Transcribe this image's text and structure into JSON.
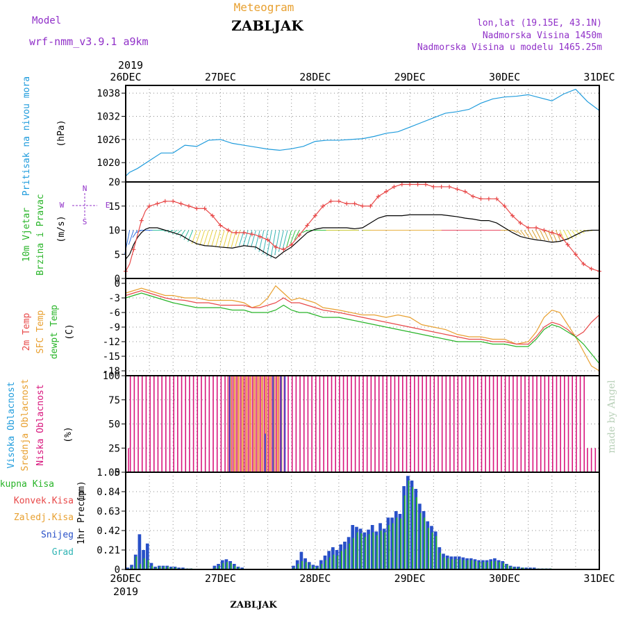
{
  "header": {
    "model_label": "Model",
    "model_name": "wrf-nmm_v3.9.1  a9km",
    "chart_kind": "Meteogram",
    "station": "ZABLJAK",
    "location_line1": "lon,lat (19.15E, 43.1N)",
    "location_line2": "Nadmorska Visina 1450m",
    "location_line3": "Nadmorska Visina u modelu 1465.25m",
    "footer_station": "ZABLJAK",
    "credit": "made by Angel"
  },
  "time_axis": {
    "year": "2019",
    "ticks": [
      "26DEC",
      "27DEC",
      "28DEC",
      "29DEC",
      "30DEC",
      "31DEC"
    ],
    "range_hours": [
      0,
      120
    ]
  },
  "colors": {
    "pressure": "#1e9bdc",
    "temp2m": "#e84848",
    "sfc_temp": "#e8a030",
    "dewpoint": "#28b428",
    "wind_speed": "#e84848",
    "gust": "#000000",
    "high_cloud": "#4848c8",
    "mid_cloud": "#e8a030",
    "low_cloud": "#d8147c",
    "precip_total": "#28b428",
    "precip_conv": "#e84848",
    "precip_freezing": "#e8a030",
    "precip_snow": "#2850c8",
    "precip_graupel": "#30b4b4",
    "wind_label": "#9030c8"
  },
  "chart_data": [
    {
      "type": "line",
      "panel": "pressure",
      "ylabel_main": "Pritisak na nivou mora",
      "ylabel_unit": "(hPa)",
      "ylim": [
        1015,
        1040
      ],
      "y_ticks": [
        "1020",
        "1026",
        "1032",
        "1038"
      ],
      "x": [
        0,
        1,
        3,
        6,
        9,
        12,
        15,
        18,
        21,
        24,
        27,
        30,
        33,
        36,
        39,
        42,
        45,
        48,
        51,
        54,
        57,
        60,
        63,
        66,
        69,
        72,
        75,
        78,
        81,
        84,
        87,
        90,
        93,
        96,
        99,
        102,
        105,
        108,
        111,
        114,
        117,
        120
      ],
      "series": [
        {
          "values": [
            1016.5,
            1017.5,
            1018.5,
            1020.5,
            1022.5,
            1022.5,
            1024.5,
            1024.2,
            1025.8,
            1026.0,
            1025.0,
            1024.5,
            1024.0,
            1023.5,
            1023.2,
            1023.6,
            1024.2,
            1025.5,
            1025.8,
            1025.8,
            1026.0,
            1026.2,
            1026.8,
            1027.6,
            1028.0,
            1029.2,
            1030.4,
            1031.6,
            1032.8,
            1033.2,
            1033.8,
            1035.4,
            1036.5,
            1037.0,
            1037.2,
            1037.6,
            1036.8,
            1036.0,
            1037.8,
            1039.0,
            1035.8,
            1033.5
          ]
        }
      ]
    },
    {
      "type": "line",
      "panel": "wind",
      "ylabel_main": "10m Vjetar",
      "ylabel_sub": "Brzina i Pravac",
      "ylabel_unit": "(m/s)",
      "compass": [
        "N",
        "W",
        "E",
        "S"
      ],
      "ylim": [
        0,
        20
      ],
      "y_ticks": [
        "0",
        "5",
        "10",
        "15",
        "20"
      ],
      "x": [
        0,
        1,
        2,
        3,
        4,
        5,
        6,
        8,
        10,
        12,
        14,
        16,
        18,
        20,
        22,
        24,
        27,
        30,
        33,
        36,
        38,
        40,
        42,
        44,
        46,
        48,
        50,
        52,
        54,
        56,
        58,
        60,
        62,
        64,
        66,
        68,
        70,
        72,
        74,
        76,
        78,
        80,
        82,
        84,
        86,
        88,
        90,
        92,
        94,
        96,
        98,
        100,
        102,
        104,
        106,
        108,
        110,
        112,
        114,
        116,
        118,
        120
      ],
      "series": [
        {
          "name": "speed",
          "values": [
            1.5,
            3,
            6,
            9,
            12,
            14,
            15,
            15.5,
            16,
            16,
            15.5,
            15,
            14.5,
            14.5,
            13,
            11,
            9.5,
            9.5,
            9,
            8,
            6.5,
            6,
            7,
            9,
            11,
            13,
            15,
            16,
            16,
            15.5,
            15.5,
            15,
            15,
            17,
            18,
            19,
            19.5,
            19.5,
            19.5,
            19.5,
            19,
            19,
            19,
            18.5,
            18,
            17,
            16.5,
            16.5,
            16.5,
            15,
            13,
            11.5,
            10.5,
            10.5,
            10,
            9.5,
            9,
            7,
            5,
            3,
            2,
            1.5
          ]
        },
        {
          "name": "gust",
          "values": [
            4,
            5,
            7,
            8.5,
            9.5,
            10.2,
            10.5,
            10.5,
            10,
            9.5,
            9,
            8,
            7.2,
            6.8,
            6.7,
            6.5,
            6.3,
            6.8,
            6.5,
            5,
            4.2,
            5.5,
            6.5,
            8,
            9.5,
            10.2,
            10.5,
            10.5,
            10.5,
            10.5,
            10.3,
            10.5,
            11.5,
            12.5,
            13,
            13,
            13,
            13.2,
            13.2,
            13.2,
            13.2,
            13.2,
            13,
            12.8,
            12.5,
            12.3,
            12,
            12,
            11.5,
            10.5,
            9.5,
            8.7,
            8.3,
            8,
            7.8,
            7.5,
            7.7,
            8.2,
            9,
            9.8,
            10,
            10
          ]
        }
      ]
    },
    {
      "type": "line",
      "panel": "temperature",
      "ylabel_main": "2m Temp",
      "ylabel_sfc": "SFC Temp",
      "ylabel_dew": "dewpt Temp",
      "ylabel_unit": "(C)",
      "ylim": [
        -19,
        1
      ],
      "y_ticks": [
        "0",
        "-3",
        "-6",
        "-9",
        "-12",
        "-15",
        "-18"
      ],
      "x": [
        0,
        2,
        4,
        6,
        8,
        10,
        12,
        15,
        18,
        21,
        24,
        27,
        30,
        32,
        34,
        36,
        38,
        40,
        42,
        44,
        46,
        48,
        50,
        54,
        57,
        60,
        63,
        66,
        69,
        72,
        75,
        78,
        81,
        84,
        87,
        90,
        93,
        96,
        99,
        102,
        104,
        106,
        108,
        110,
        112,
        114,
        116,
        118,
        120
      ],
      "series": [
        {
          "name": "2m",
          "values": [
            -2.5,
            -2,
            -1.5,
            -2,
            -2.5,
            -3,
            -3.3,
            -3.5,
            -4,
            -4,
            -4.5,
            -4.5,
            -4.5,
            -5,
            -5,
            -4.5,
            -4,
            -3,
            -4,
            -4,
            -4.5,
            -5,
            -5.5,
            -6,
            -6.5,
            -7,
            -7.5,
            -8,
            -8.5,
            -9,
            -9.5,
            -10,
            -10.5,
            -11,
            -11.5,
            -11.5,
            -12,
            -12,
            -12.5,
            -12.5,
            -11,
            -9,
            -8,
            -8.5,
            -9.5,
            -11,
            -10,
            -8,
            -6.5
          ]
        },
        {
          "name": "sfc",
          "values": [
            -2,
            -1.5,
            -1,
            -1.5,
            -2,
            -2.5,
            -2.5,
            -3,
            -3,
            -3.5,
            -3.5,
            -3.5,
            -4,
            -5,
            -4.5,
            -3,
            -0.5,
            -2,
            -3.5,
            -3,
            -3.5,
            -4,
            -5,
            -5.5,
            -6,
            -6.5,
            -6.5,
            -7,
            -6.5,
            -7,
            -8.5,
            -9,
            -9.5,
            -10.5,
            -11,
            -11,
            -11.5,
            -11.5,
            -12.5,
            -12,
            -10,
            -7,
            -5.5,
            -6,
            -8.5,
            -11,
            -14,
            -17,
            -18
          ]
        },
        {
          "name": "dew",
          "values": [
            -3,
            -2.5,
            -2,
            -2.5,
            -3,
            -3.5,
            -4,
            -4.5,
            -5,
            -5,
            -5,
            -5.5,
            -5.5,
            -6,
            -6,
            -6,
            -5.5,
            -4.5,
            -5.5,
            -6,
            -6,
            -6.5,
            -7,
            -7,
            -7.5,
            -8,
            -8.5,
            -9,
            -9.5,
            -10,
            -10.5,
            -11,
            -11.5,
            -12,
            -12,
            -12,
            -12.5,
            -12.5,
            -13,
            -13,
            -11.5,
            -9.5,
            -8.5,
            -9,
            -10,
            -11,
            -12.5,
            -14.5,
            -16.5
          ]
        }
      ]
    },
    {
      "type": "bar",
      "panel": "cloud",
      "ylabel_high": "Visoka Oblacnost",
      "ylabel_mid": "Srednja Oblacnost",
      "ylabel_low": "Niska Oblacnost",
      "ylabel_unit": "(%)",
      "ylim": [
        0,
        100
      ],
      "y_ticks": [
        "0",
        "25",
        "50",
        "75",
        "100"
      ],
      "low_full_from_hour": 1,
      "low_full_to_hour": 116,
      "low_gaps_hours": [
        0,
        117,
        118,
        119,
        120
      ],
      "mid_full_hours": [
        26,
        27,
        28,
        29,
        30,
        31,
        32,
        33,
        34,
        35,
        36,
        37,
        38,
        39
      ],
      "high_values": [
        {
          "hour": 26,
          "value": 100
        },
        {
          "hour": 35,
          "value": 40
        },
        {
          "hour": 37,
          "value": 100
        },
        {
          "hour": 39,
          "value": 100
        },
        {
          "hour": 40,
          "value": 100
        }
      ]
    },
    {
      "type": "bar",
      "panel": "precipitation",
      "ylabel_main": "1hr Precip",
      "ylabel_unit": "(mm)",
      "legend": [
        "Ukupna Kisa",
        "Konvek.Kisa",
        "Zaledj.Kisa",
        "Snijeg",
        "Grad"
      ],
      "ylim": [
        0,
        1.05
      ],
      "y_ticks": [
        "0",
        "0.21",
        "0.42",
        "0.63",
        "0.84",
        "1.05"
      ],
      "snow": [
        0.02,
        0.05,
        0.16,
        0.38,
        0.21,
        0.28,
        0.07,
        0.03,
        0.04,
        0.04,
        0.04,
        0.03,
        0.03,
        0.02,
        0.02,
        0.01,
        0.01,
        0,
        0,
        0,
        0,
        0,
        0.04,
        0.06,
        0.1,
        0.11,
        0.09,
        0.06,
        0.03,
        0.02,
        0,
        0,
        0,
        0,
        0,
        0,
        0,
        0,
        0,
        0,
        0,
        0,
        0.04,
        0.1,
        0.19,
        0.12,
        0.08,
        0.05,
        0.04,
        0.1,
        0.15,
        0.2,
        0.24,
        0.21,
        0.27,
        0.3,
        0.35,
        0.48,
        0.46,
        0.44,
        0.4,
        0.43,
        0.48,
        0.41,
        0.5,
        0.44,
        0.56,
        0.56,
        0.63,
        0.6,
        0.9,
        1.01,
        0.96,
        0.87,
        0.71,
        0.63,
        0.52,
        0.47,
        0.41,
        0.24,
        0.17,
        0.15,
        0.14,
        0.14,
        0.14,
        0.13,
        0.12,
        0.12,
        0.11,
        0.1,
        0.1,
        0.1,
        0.11,
        0.12,
        0.1,
        0.09,
        0.06,
        0.04,
        0.03,
        0.03,
        0.02,
        0.02,
        0.02,
        0.02,
        0.01,
        0.01,
        0.01,
        0.01,
        0,
        0,
        0,
        0,
        0,
        0,
        0,
        0,
        0,
        0,
        0,
        0
      ],
      "total": [
        0.01,
        0.03,
        0.14,
        0.06,
        0.12,
        0.1,
        0.04,
        0.02,
        0.03,
        0.03,
        0.03,
        0.02,
        0.02,
        0.01,
        0.01,
        0.01,
        0.01,
        0,
        0,
        0,
        0,
        0,
        0.02,
        0.04,
        0.07,
        0.08,
        0.07,
        0.04,
        0.02,
        0.01,
        0,
        0,
        0,
        0,
        0,
        0,
        0,
        0,
        0,
        0,
        0,
        0,
        0.02,
        0.06,
        0.09,
        0.08,
        0.05,
        0.03,
        0.02,
        0.06,
        0.1,
        0.13,
        0.16,
        0.15,
        0.2,
        0.22,
        0.28,
        0.34,
        0.4,
        0.39,
        0.35,
        0.38,
        0.4,
        0.37,
        0.42,
        0.4,
        0.48,
        0.5,
        0.56,
        0.55,
        0.8,
        0.96,
        0.89,
        0.78,
        0.61,
        0.56,
        0.45,
        0.4,
        0.36,
        0.18,
        0.13,
        0.12,
        0.11,
        0.11,
        0.11,
        0.1,
        0.1,
        0.1,
        0.09,
        0.08,
        0.08,
        0.08,
        0.09,
        0.09,
        0.08,
        0.07,
        0.05,
        0.03,
        0.02,
        0.02,
        0.02,
        0.01,
        0.01,
        0.01,
        0.01,
        0.01,
        0.01,
        0.01,
        0,
        0,
        0,
        0,
        0,
        0,
        0,
        0,
        0,
        0,
        0,
        0
      ]
    }
  ]
}
